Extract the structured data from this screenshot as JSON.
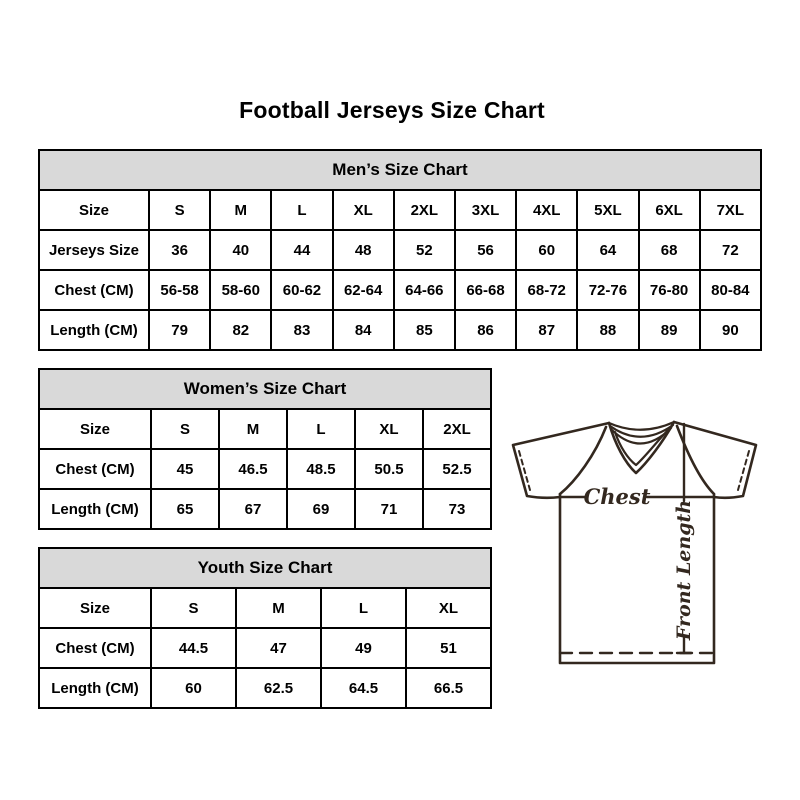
{
  "page": {
    "title": "Football Jerseys Size Chart"
  },
  "colors": {
    "header_bg": "#d9d9d9",
    "table_border": "#000000",
    "text": "#000000",
    "diagram_stroke": "#33281f"
  },
  "diagram": {
    "chest_label": "Chest",
    "front_length_label": "Front Length"
  },
  "chart_data": [
    {
      "type": "table",
      "title": "Men’s Size Chart",
      "label_col_width": 110,
      "rows": [
        {
          "label": "Size",
          "values": [
            "S",
            "M",
            "L",
            "XL",
            "2XL",
            "3XL",
            "4XL",
            "5XL",
            "6XL",
            "7XL"
          ]
        },
        {
          "label": "Jerseys Size",
          "values": [
            "36",
            "40",
            "44",
            "48",
            "52",
            "56",
            "60",
            "64",
            "68",
            "72"
          ]
        },
        {
          "label": "Chest (CM)",
          "values": [
            "56-58",
            "58-60",
            "60-62",
            "62-64",
            "64-66",
            "66-68",
            "68-72",
            "72-76",
            "76-80",
            "80-84"
          ]
        },
        {
          "label": "Length (CM)",
          "values": [
            "79",
            "82",
            "83",
            "84",
            "85",
            "86",
            "87",
            "88",
            "89",
            "90"
          ]
        }
      ]
    },
    {
      "type": "table",
      "title": "Women’s Size Chart",
      "label_col_width": 112,
      "rows": [
        {
          "label": "Size",
          "values": [
            "S",
            "M",
            "L",
            "XL",
            "2XL"
          ]
        },
        {
          "label": "Chest (CM)",
          "values": [
            "45",
            "46.5",
            "48.5",
            "50.5",
            "52.5"
          ]
        },
        {
          "label": "Length (CM)",
          "values": [
            "65",
            "67",
            "69",
            "71",
            "73"
          ]
        }
      ]
    },
    {
      "type": "table",
      "title": "Youth Size Chart",
      "label_col_width": 112,
      "rows": [
        {
          "label": "Size",
          "values": [
            "S",
            "M",
            "L",
            "XL"
          ]
        },
        {
          "label": "Chest (CM)",
          "values": [
            "44.5",
            "47",
            "49",
            "51"
          ]
        },
        {
          "label": "Length (CM)",
          "values": [
            "60",
            "62.5",
            "64.5",
            "66.5"
          ]
        }
      ]
    }
  ]
}
